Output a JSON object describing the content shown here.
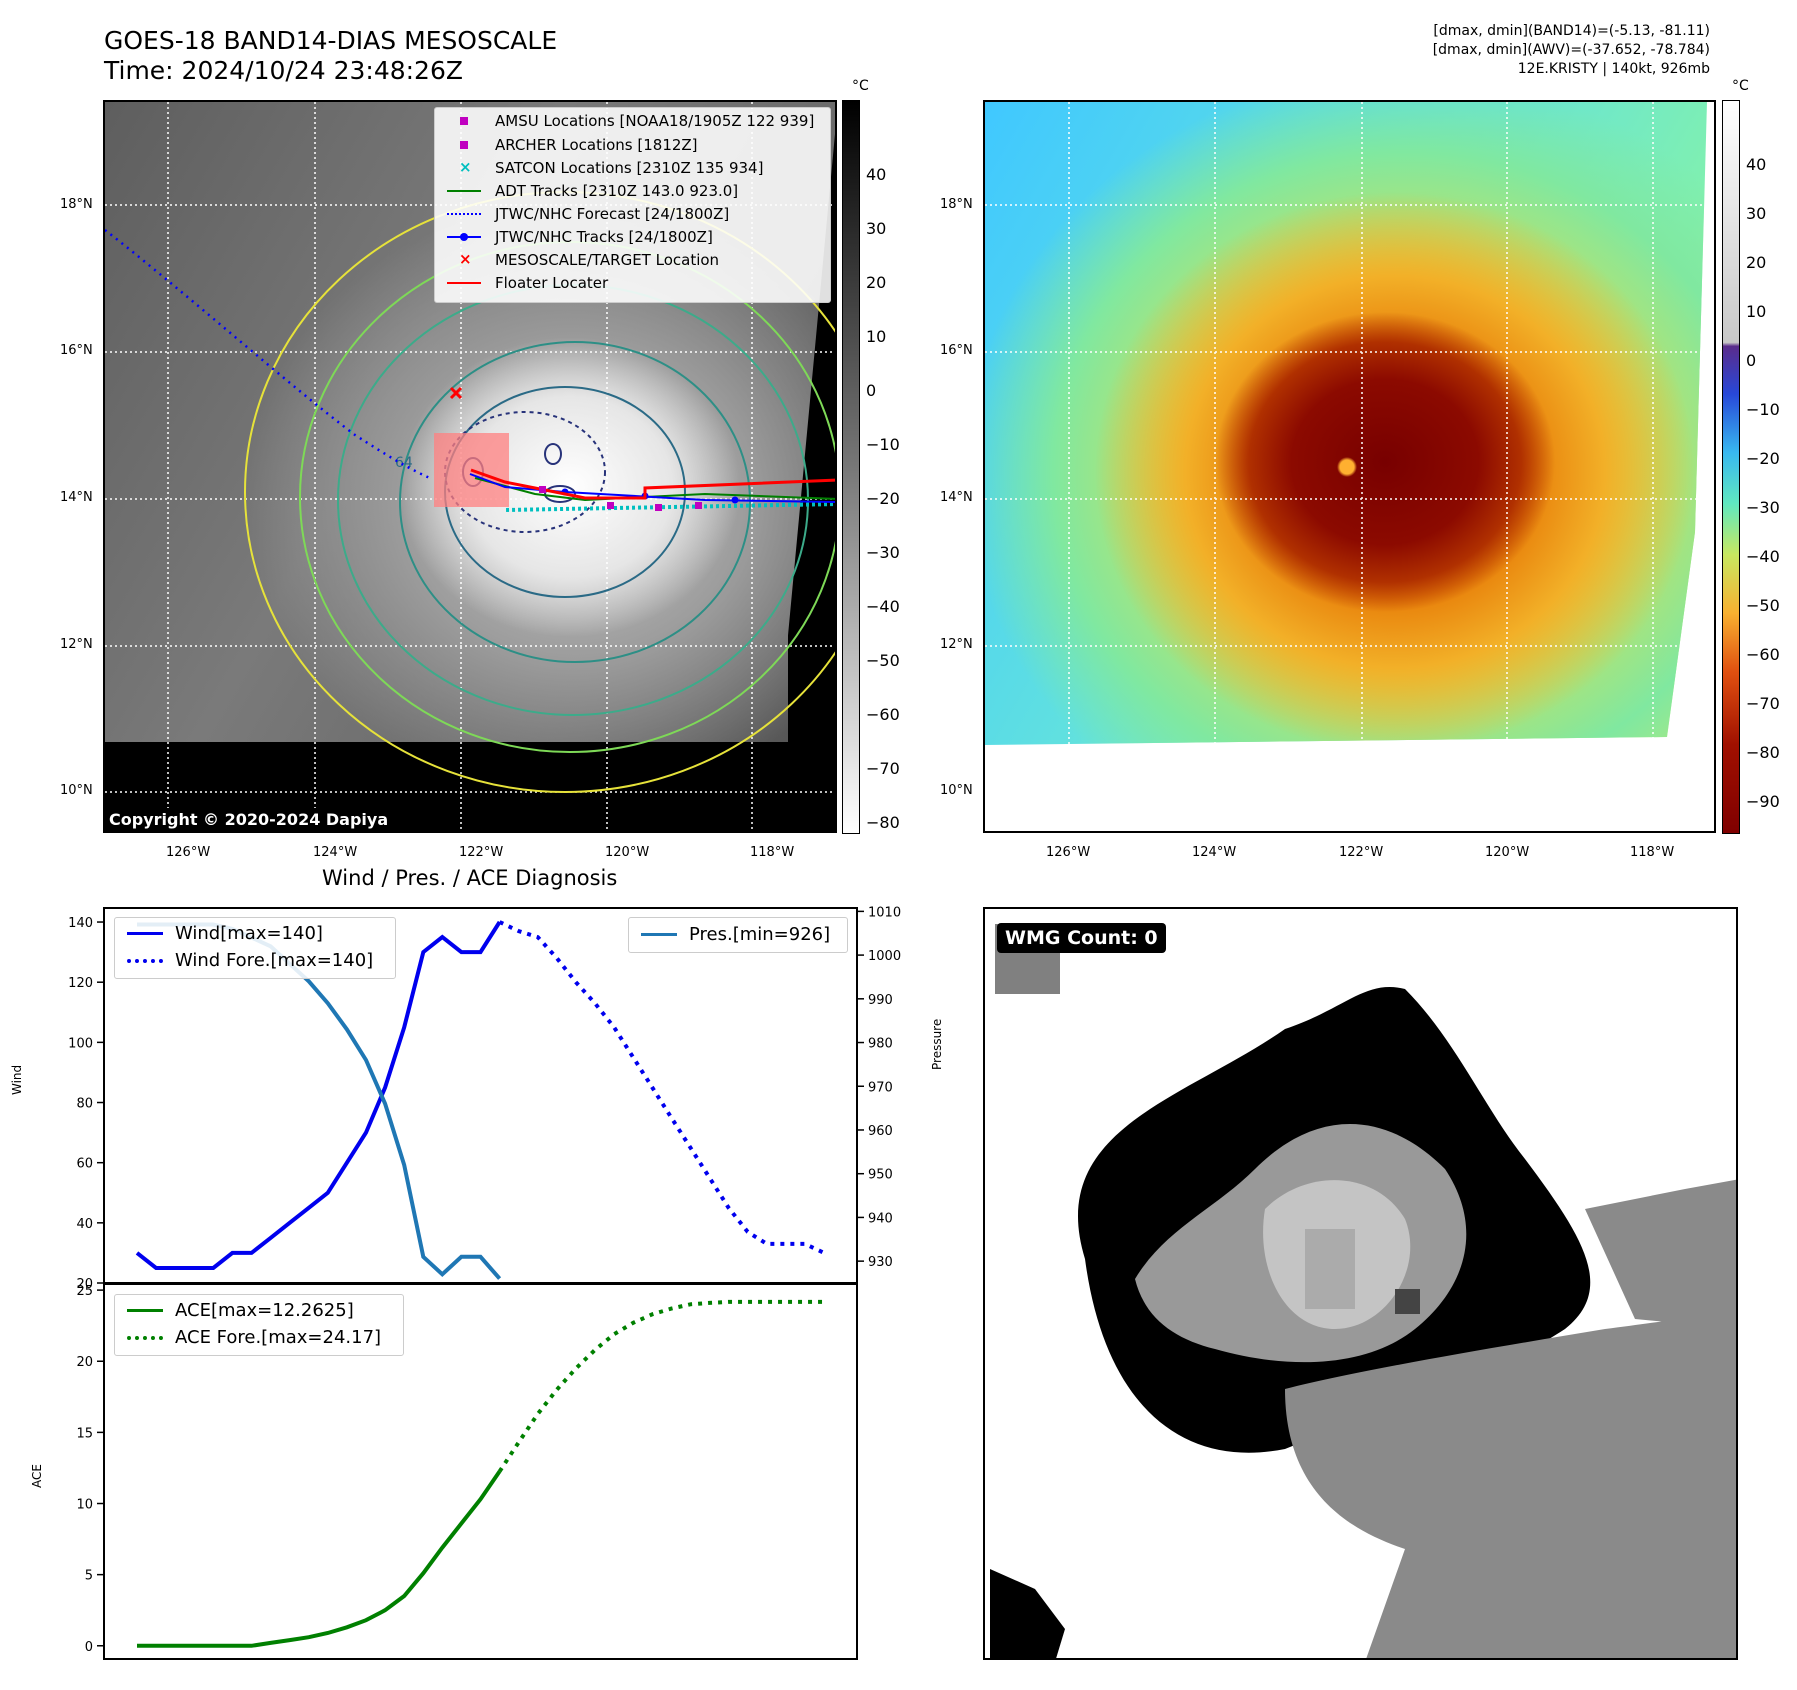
{
  "header": {
    "title_line1": "GOES-18 BAND14-DIAS MESOSCALE",
    "title_line2": "Time: 2024/10/24 23:48:26Z",
    "info_line1": "[dmax, dmin](BAND14)=(-5.13, -81.11)",
    "info_line2": "[dmax, dmin](AWV)=(-37.652, -78.784)",
    "info_line3": "12E.KRISTY | 140kt, 926mb"
  },
  "map_left": {
    "copyright": "Copyright © 2020-2024 Dapiya",
    "contour_label": "64",
    "lat_labels": [
      "18°N",
      "16°N",
      "14°N",
      "12°N",
      "10°N"
    ],
    "lon_labels": [
      "126°W",
      "124°W",
      "122°W",
      "120°W",
      "118°W"
    ],
    "colorbar_unit": "°C",
    "colorbar_ticks": [
      "40",
      "30",
      "20",
      "10",
      "0",
      "−10",
      "−20",
      "−30",
      "−40",
      "−50",
      "−60",
      "−70",
      "−80"
    ],
    "legend": [
      {
        "label": "AMSU Locations [NOAA18/1905Z 122 939]",
        "icon": "square-marker",
        "color": "#c000c0"
      },
      {
        "label": "ARCHER Locations [1812Z]",
        "icon": "square-marker",
        "color": "#c000c0"
      },
      {
        "label": "SATCON Locations [2310Z 135 934]",
        "icon": "x-marker",
        "color": "#00bfbf"
      },
      {
        "label": "ADT Tracks [2310Z 143.0 923.0]",
        "icon": "solid-line",
        "color": "#008000"
      },
      {
        "label": "JTWC/NHC Forecast [24/1800Z]",
        "icon": "dotted-line",
        "color": "#0000ff"
      },
      {
        "label": "JTWC/NHC Tracks [24/1800Z]",
        "icon": "line-dot",
        "color": "#0000ff"
      },
      {
        "label": "MESOSCALE/TARGET Location",
        "icon": "x-marker",
        "color": "#ff0000"
      },
      {
        "label": "Floater Locater",
        "icon": "solid-line",
        "color": "#ff0000"
      }
    ]
  },
  "map_right": {
    "lat_labels": [
      "18°N",
      "16°N",
      "14°N",
      "12°N",
      "10°N"
    ],
    "lon_labels": [
      "126°W",
      "124°W",
      "122°W",
      "120°W",
      "118°W"
    ],
    "colorbar_unit": "°C",
    "colorbar_ticks": [
      "40",
      "30",
      "20",
      "10",
      "0",
      "−10",
      "−20",
      "−30",
      "−40",
      "−50",
      "−60",
      "−70",
      "−80",
      "−90"
    ]
  },
  "wind_panel": {
    "title": "Wind / Pres. / ACE Diagnosis",
    "ylabel_left": "Wind",
    "ylabel_right": "Pressure",
    "left_ticks": [
      "140",
      "120",
      "100",
      "80",
      "60",
      "40",
      "20"
    ],
    "right_ticks": [
      "1010",
      "1000",
      "990",
      "980",
      "970",
      "960",
      "950",
      "940",
      "930"
    ],
    "legend_wind": "Wind[max=140]",
    "legend_wind_fore": "Wind Fore.[max=140]",
    "legend_pres": "Pres.[min=926]"
  },
  "ace_panel": {
    "ylabel": "ACE",
    "ticks": [
      "25",
      "20",
      "15",
      "10",
      "5",
      "0"
    ],
    "legend_ace": "ACE[max=12.2625]",
    "legend_ace_fore": "ACE Fore.[max=24.17]"
  },
  "wmg_panel": {
    "badge": "WMG Count: 0"
  },
  "chart_data": [
    {
      "type": "line",
      "title": "Wind / Pres. / ACE Diagnosis",
      "ylabel": "Wind",
      "ylim": [
        20,
        145
      ],
      "series": [
        {
          "name": "Wind[max=140]",
          "color": "#0000ee",
          "style": "solid",
          "values": [
            30,
            25,
            25,
            25,
            25,
            30,
            30,
            35,
            40,
            45,
            50,
            60,
            70,
            85,
            105,
            130,
            135,
            130,
            130,
            140
          ]
        },
        {
          "name": "Wind Fore.[max=140]",
          "color": "#0000ee",
          "style": "dotted",
          "values": [
            140,
            137,
            135,
            128,
            120,
            113,
            105,
            95,
            85,
            75,
            65,
            55,
            45,
            37,
            33,
            33,
            33,
            30
          ]
        }
      ]
    },
    {
      "type": "line",
      "ylabel": "Pressure",
      "ylim": [
        925,
        1011
      ],
      "series": [
        {
          "name": "Pres.[min=926]",
          "color": "#1f77b4",
          "style": "solid",
          "values": [
            1007,
            1007,
            1007,
            1007,
            1007,
            1006,
            1004,
            1002,
            998,
            994,
            989,
            983,
            976,
            966,
            952,
            931,
            927,
            931,
            931,
            926
          ]
        }
      ]
    },
    {
      "type": "line",
      "ylabel": "ACE",
      "ylim": [
        -1,
        25.5
      ],
      "series": [
        {
          "name": "ACE[max=12.2625]",
          "color": "#008000",
          "style": "solid",
          "values": [
            0,
            0,
            0,
            0,
            0,
            0,
            0,
            0.2,
            0.4,
            0.6,
            0.9,
            1.3,
            1.8,
            2.5,
            3.5,
            5.1,
            6.9,
            8.6,
            10.3,
            12.26
          ]
        },
        {
          "name": "ACE Fore.[max=24.17]",
          "color": "#008000",
          "style": "dotted",
          "values": [
            12.26,
            14.3,
            16.3,
            18.0,
            19.5,
            20.8,
            21.9,
            22.7,
            23.3,
            23.7,
            24.0,
            24.1,
            24.17,
            24.17,
            24.17,
            24.17,
            24.17,
            24.17
          ]
        }
      ]
    }
  ]
}
